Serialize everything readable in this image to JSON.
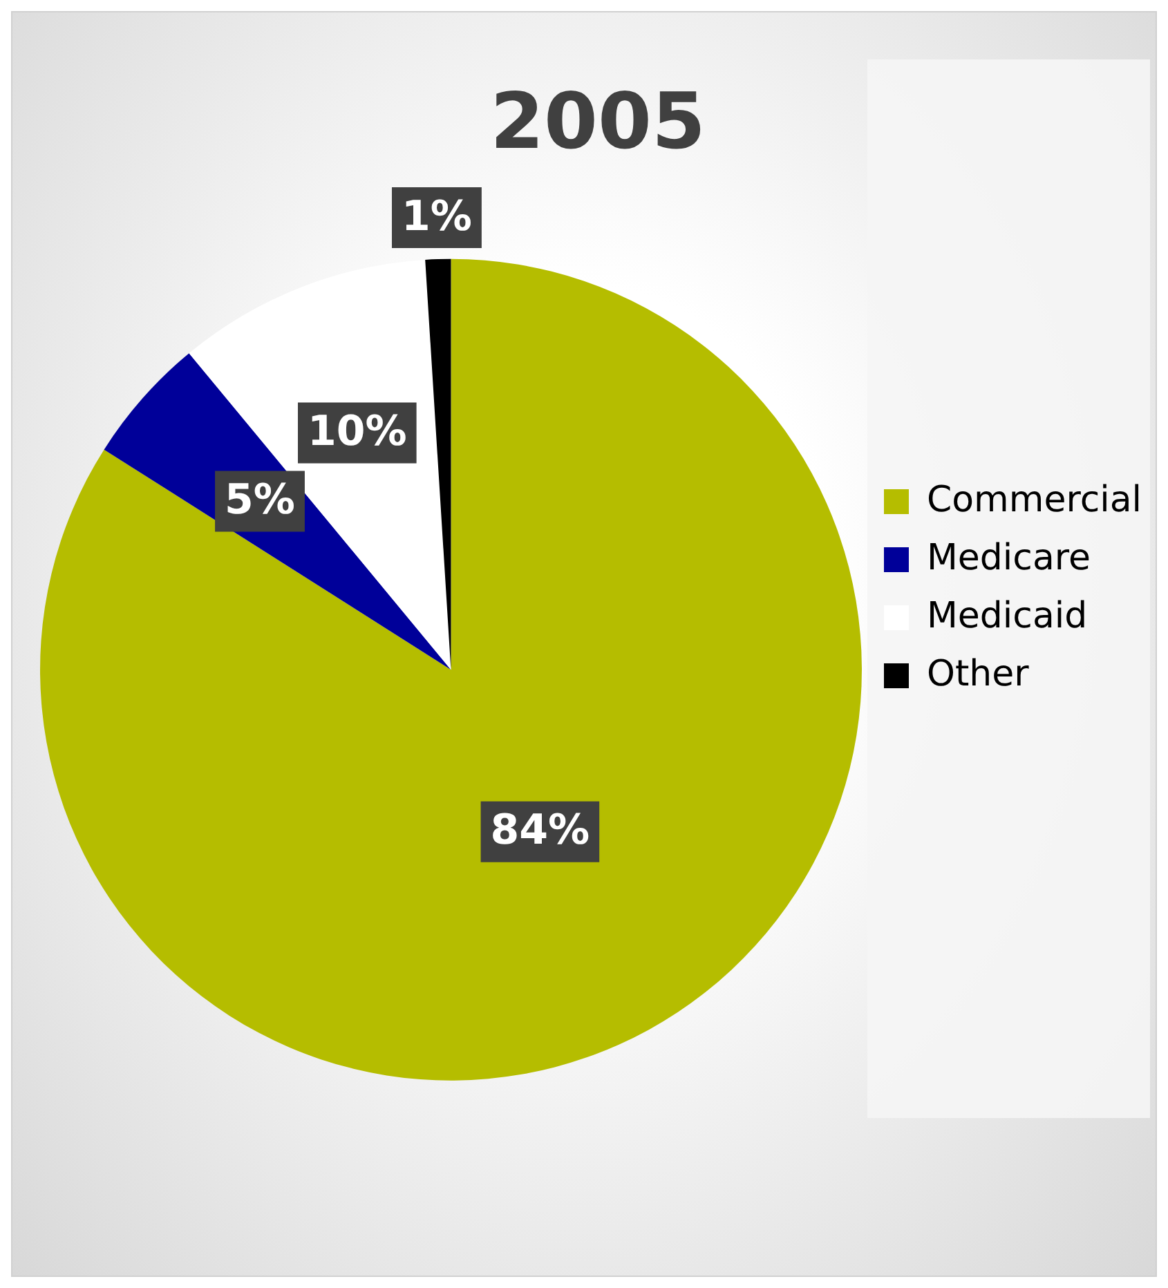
{
  "chart_data": {
    "type": "pie",
    "title": "2005",
    "categories": [
      "Commercial",
      "Medicare",
      "Medicaid",
      "Other"
    ],
    "values": [
      84,
      5,
      10,
      1
    ],
    "colors": [
      "#b5bd00",
      "#000099",
      "#ffffff",
      "#000000"
    ],
    "value_labels": [
      "84%",
      "5%",
      "10%",
      "1%"
    ],
    "legend": "right"
  }
}
